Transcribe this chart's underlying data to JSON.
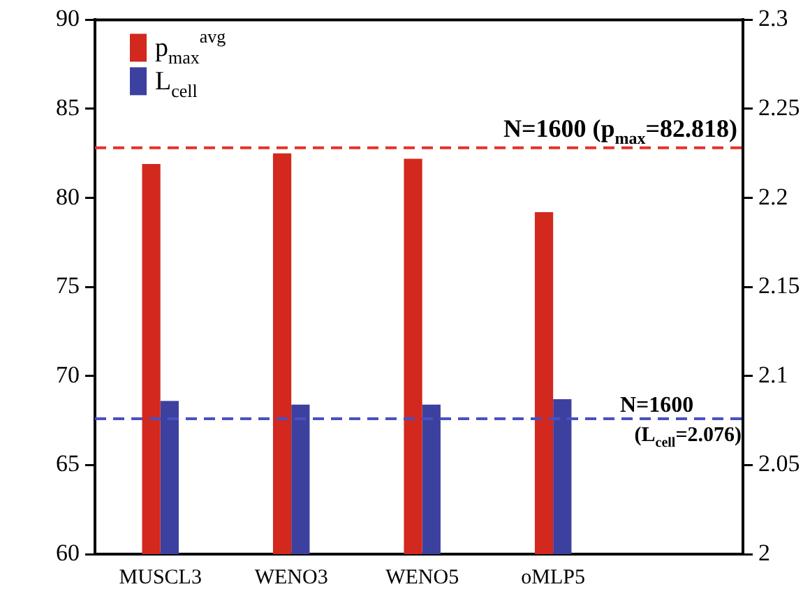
{
  "chart_data": {
    "type": "bar",
    "categories": [
      "MUSCL3",
      "WENO3",
      "WENO5",
      "oMLP5"
    ],
    "series": [
      {
        "name": "p$_{max}$$^{avg}$",
        "color": "#d2281e",
        "values": [
          81.9,
          82.5,
          82.2,
          79.2
        ]
      },
      {
        "name": "L$_{cell}$",
        "color": "#3c41a0",
        "values": [
          2.086,
          2.084,
          2.084,
          2.087
        ],
        "axis": "y2"
      }
    ],
    "ylim": [
      60,
      90
    ],
    "yticks": [
      60,
      65,
      70,
      75,
      80,
      85,
      90
    ],
    "y2lim": [
      2,
      2.3
    ],
    "y2ticks": [
      2,
      2.05,
      2.1,
      2.15,
      2.2,
      2.25,
      2.3
    ],
    "ref_lines": [
      {
        "axis": "y",
        "value": 82.818,
        "label": "N=1600 (p$_{max}$=82.818)",
        "color": "#e8302a",
        "line_style": "dashed"
      },
      {
        "axis": "y2",
        "value": 2.076,
        "label": "N=1600 (L$_{cell}$=2.076)",
        "color": "#4a50c0",
        "line_style": "dashed"
      }
    ],
    "grid": false,
    "legend": "top left"
  }
}
